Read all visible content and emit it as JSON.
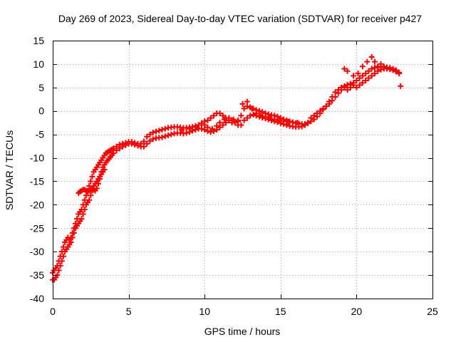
{
  "chart_data": {
    "type": "scatter",
    "title": "Day 269 of 2023, Sidereal Day-to-day VTEC variation (SDTVAR) for receiver p427",
    "xlabel": "GPS time / hours",
    "ylabel": "SDTVAR / TECUs",
    "xlim": [
      0,
      25
    ],
    "ylim": [
      -40,
      15
    ],
    "xticks": [
      0,
      5,
      10,
      15,
      20,
      25
    ],
    "yticks": [
      -40,
      -35,
      -30,
      -25,
      -20,
      -15,
      -10,
      -5,
      0,
      5,
      10,
      15
    ],
    "grid": true,
    "legend": "none",
    "marker": "plus",
    "color": "#ff0000",
    "series": [
      {
        "x": [
          0.0,
          0.1,
          0.2,
          0.3,
          0.4,
          0.5,
          0.6,
          0.7,
          0.8,
          0.9,
          1.0,
          1.1,
          1.2,
          1.3,
          1.4,
          1.5,
          1.6,
          1.7,
          1.8,
          1.9,
          2.0,
          2.1,
          2.2,
          2.3,
          2.4,
          2.5,
          2.6,
          2.7,
          2.8,
          2.9,
          3.0,
          3.1,
          3.2,
          3.3,
          3.4,
          3.5,
          3.6,
          3.7,
          3.8,
          3.9,
          4.0,
          4.2,
          4.4,
          4.6,
          4.8,
          5.0,
          5.2,
          5.4,
          5.6,
          5.8,
          6.0,
          6.2,
          6.4,
          6.6,
          6.8,
          7.0,
          7.2,
          7.4,
          7.6,
          7.8,
          8.0,
          8.2,
          8.4,
          8.6,
          8.8,
          9.0,
          9.2,
          9.4,
          9.6,
          9.8,
          10.0,
          10.2,
          10.4,
          10.6,
          10.8,
          11.0,
          11.2,
          11.4,
          11.6,
          11.8,
          12.0,
          12.2,
          12.4,
          12.6,
          12.8,
          13.0,
          13.2,
          13.4,
          13.6,
          13.8,
          14.0,
          14.2,
          14.4,
          14.6,
          14.8,
          15.0,
          15.2,
          15.4,
          15.6,
          15.8,
          16.0,
          16.2,
          16.4,
          16.6,
          16.8,
          17.0,
          17.2,
          17.4,
          17.6,
          17.8,
          18.0,
          18.2,
          18.4,
          18.6,
          18.8,
          19.0,
          19.2,
          19.4,
          19.6,
          19.8,
          20.0,
          20.2,
          20.4,
          20.6,
          20.8,
          21.0,
          21.2,
          21.4,
          21.6,
          21.8,
          22.0,
          22.2,
          22.4,
          22.6,
          22.8
        ],
        "y": [
          -34.5,
          -34.0,
          -33.5,
          -33.0,
          -32.0,
          -31.0,
          -30.0,
          -29.0,
          -28.0,
          -27.5,
          -27.0,
          -27.5,
          -27.0,
          -26.0,
          -25.0,
          -24.0,
          -23.0,
          -22.0,
          -21.5,
          -21.0,
          -20.0,
          -19.0,
          -18.0,
          -17.0,
          -16.0,
          -15.0,
          -14.0,
          -13.0,
          -12.5,
          -12.0,
          -11.5,
          -11.0,
          -10.5,
          -10.0,
          -9.5,
          -9.0,
          -8.8,
          -8.6,
          -8.4,
          -8.2,
          -8.0,
          -7.6,
          -7.2,
          -7.0,
          -6.8,
          -6.6,
          -6.6,
          -6.8,
          -7.0,
          -7.0,
          -6.5,
          -5.5,
          -5.0,
          -4.6,
          -4.4,
          -4.2,
          -4.0,
          -3.8,
          -3.6,
          -3.5,
          -3.4,
          -3.4,
          -3.5,
          -3.6,
          -3.6,
          -3.5,
          -3.4,
          -3.2,
          -3.0,
          -2.6,
          -2.2,
          -2.0,
          -1.5,
          -1.0,
          -0.5,
          -0.5,
          -1.0,
          -1.5,
          -2.0,
          -2.5,
          -2.5,
          -2.0,
          -1.0,
          0.5,
          1.0,
          0.8,
          0.5,
          0.2,
          0.0,
          -0.2,
          -0.5,
          -0.7,
          -0.9,
          -1.0,
          -1.2,
          -1.5,
          -1.8,
          -2.0,
          -2.2,
          -2.4,
          -2.6,
          -2.7,
          -2.8,
          -2.8,
          -2.6,
          -2.2,
          -1.8,
          -1.2,
          -0.5,
          0.3,
          1.0,
          2.0,
          3.0,
          4.0,
          4.5,
          5.0,
          5.3,
          5.6,
          5.8,
          6.0,
          6.5,
          7.0,
          7.5,
          8.0,
          8.5,
          9.0,
          9.2,
          9.3,
          9.4,
          9.4,
          9.3,
          9.2,
          9.0,
          8.7,
          8.2
        ]
      },
      {
        "x": [
          0.0,
          0.1,
          0.2,
          0.3,
          0.4,
          0.5,
          0.6,
          0.7,
          0.8,
          0.9,
          1.0,
          1.1,
          1.2,
          1.3,
          1.4,
          1.5,
          1.6,
          1.7,
          1.8,
          1.9,
          2.0,
          2.1,
          2.2,
          2.3,
          2.4,
          2.5,
          2.6,
          2.7,
          2.8,
          2.9,
          3.0,
          3.1,
          3.2,
          3.3,
          3.4,
          3.5,
          3.6,
          3.7,
          3.8,
          3.9,
          4.0,
          4.2,
          4.4,
          4.6,
          4.8,
          5.0,
          5.2,
          5.4,
          5.6,
          5.8,
          6.0,
          6.2,
          6.4,
          6.6,
          6.8,
          7.0,
          7.2,
          7.4,
          7.6,
          7.8,
          8.0,
          8.2,
          8.4,
          8.6,
          8.8,
          9.0,
          9.2,
          9.4,
          9.6,
          9.8,
          10.0,
          10.2,
          10.4,
          10.6,
          10.8,
          11.0,
          11.2,
          11.4,
          11.6,
          11.8,
          12.0,
          12.2,
          12.4,
          12.6,
          12.8,
          13.0,
          13.2,
          13.4,
          13.6,
          13.8,
          14.0,
          14.2,
          14.4,
          14.6,
          14.8,
          15.0,
          15.2,
          15.4,
          15.6,
          15.8,
          16.0,
          16.2,
          16.4,
          16.6,
          16.8,
          17.0,
          17.2,
          17.4,
          17.6,
          17.8,
          18.0,
          18.2,
          18.4,
          18.6,
          18.8,
          19.0,
          19.2,
          19.4,
          19.6,
          19.8,
          20.0,
          20.2,
          20.4,
          20.6,
          20.8,
          21.0,
          21.2,
          21.4,
          21.6,
          21.8,
          22.0,
          22.2,
          22.4,
          22.6,
          22.8
        ],
        "y": [
          -36.0,
          -36.0,
          -35.5,
          -35.0,
          -34.0,
          -33.0,
          -32.0,
          -31.0,
          -30.0,
          -29.5,
          -29.0,
          -28.5,
          -28.0,
          -27.0,
          -26.0,
          -25.0,
          -24.5,
          -24.0,
          -23.5,
          -23.0,
          -22.0,
          -21.0,
          -20.0,
          -19.5,
          -19.0,
          -18.0,
          -17.0,
          -16.0,
          -15.5,
          -15.0,
          -14.5,
          -14.0,
          -13.0,
          -12.0,
          -11.5,
          -11.0,
          -10.6,
          -10.2,
          -9.8,
          -9.4,
          -9.0,
          -8.4,
          -8.0,
          -7.6,
          -7.3,
          -7.0,
          -7.0,
          -7.2,
          -7.4,
          -7.6,
          -7.6,
          -7.0,
          -6.4,
          -6.0,
          -5.8,
          -5.7,
          -5.6,
          -5.4,
          -5.2,
          -5.0,
          -4.8,
          -4.7,
          -4.7,
          -4.8,
          -4.7,
          -4.5,
          -4.2,
          -4.0,
          -3.8,
          -3.8,
          -4.0,
          -4.3,
          -4.5,
          -4.3,
          -4.0,
          -3.5,
          -3.0,
          -2.5,
          -2.0,
          -2.0,
          -2.5,
          -3.0,
          -3.0,
          -2.0,
          -1.5,
          -1.0,
          -0.8,
          -1.0,
          -1.2,
          -1.4,
          -1.6,
          -1.8,
          -2.0,
          -2.2,
          -2.4,
          -2.6,
          -2.8,
          -3.0,
          -3.2,
          -3.3,
          -3.4,
          -3.4,
          -3.3,
          -3.0,
          -2.5,
          -1.5,
          -1.0,
          -0.5,
          0.0,
          0.5,
          1.0,
          1.5,
          2.2,
          3.0,
          3.8,
          4.5,
          5.0,
          4.5,
          5.0,
          5.5,
          5.0,
          5.5,
          6.0,
          6.5,
          7.0,
          7.5,
          8.0,
          8.5,
          8.8,
          9.0,
          9.0,
          8.9,
          8.7,
          8.4,
          8.0
        ]
      },
      {
        "x": [
          1.7,
          1.8,
          1.9,
          2.0,
          2.1,
          2.2,
          2.3,
          2.4,
          2.5,
          2.6,
          2.7,
          2.8,
          2.9,
          3.0,
          3.1,
          3.2,
          3.3,
          3.4
        ],
        "y": [
          -17.5,
          -17.2,
          -17.0,
          -16.8,
          -16.8,
          -17.0,
          -17.2,
          -17.0,
          -16.8,
          -16.5,
          -16.8,
          -17.0,
          -16.5,
          -15.5,
          -14.5,
          -13.5,
          -13.0,
          -12.5
        ]
      },
      {
        "x": [
          8.5,
          9.0,
          9.5,
          10.0,
          10.2,
          10.5,
          10.8,
          11.0,
          11.3,
          11.6,
          11.9,
          12.2,
          12.5,
          12.8,
          13.1,
          13.4,
          13.7,
          14.0,
          14.3,
          14.6,
          14.9,
          15.2,
          15.5,
          15.8,
          16.1
        ],
        "y": [
          -4.0,
          -3.8,
          -3.5,
          -3.0,
          -3.5,
          -3.8,
          -3.2,
          -2.5,
          -1.8,
          -1.5,
          -1.8,
          -2.2,
          1.5,
          2.0,
          0.5,
          -0.5,
          -1.0,
          -1.2,
          -1.5,
          -1.8,
          -2.0,
          -2.2,
          -2.3,
          -2.4,
          -2.5
        ]
      },
      {
        "x": [
          19.2,
          19.4,
          19.8,
          20.1,
          20.4,
          20.7,
          21.0,
          21.2,
          21.4,
          21.6,
          21.8,
          22.0,
          22.2
        ],
        "y": [
          9.0,
          8.5,
          7.5,
          8.0,
          9.5,
          10.5,
          11.5,
          10.5,
          9.5,
          10.0,
          9.5,
          9.2,
          9.0
        ]
      },
      {
        "x": [
          22.9
        ],
        "y": [
          5.3
        ]
      }
    ]
  }
}
